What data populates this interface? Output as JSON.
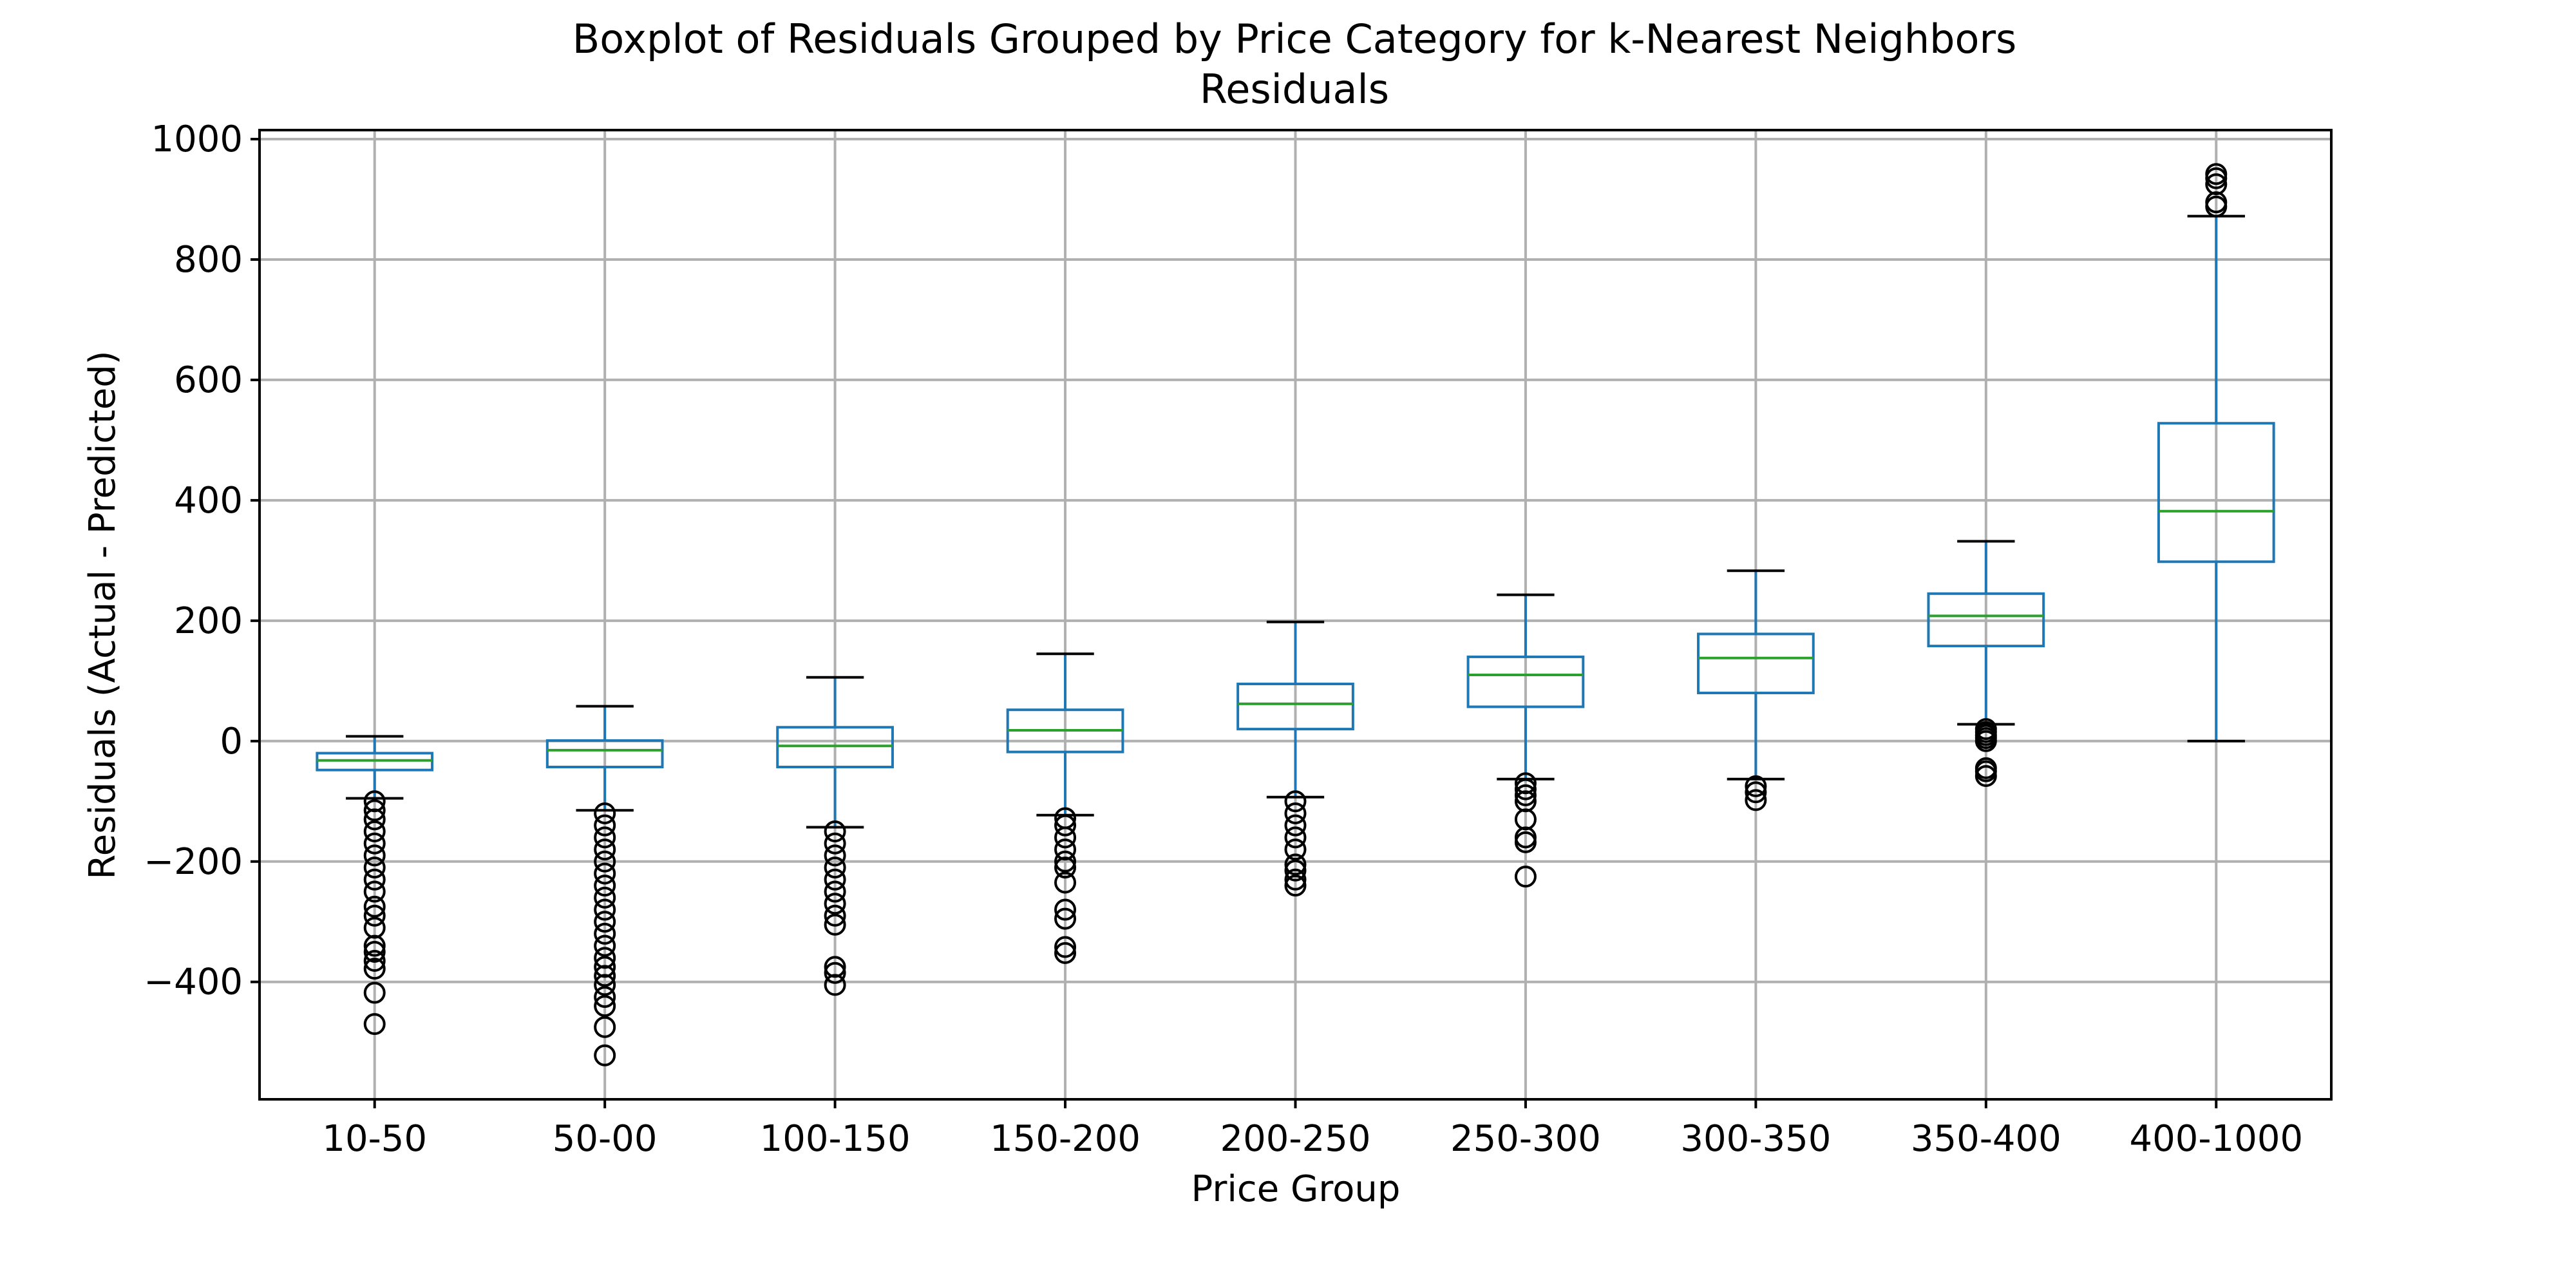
{
  "chart_data": {
    "type": "boxplot",
    "title": "Boxplot of Residuals Grouped by Price Category for k-Nearest Neighbors",
    "subtitle": "Residuals",
    "xlabel": "Price Group",
    "ylabel": "Residuals (Actual - Predicted)",
    "ylim": [
      -595,
      1015
    ],
    "yticks": [
      -400,
      -200,
      0,
      200,
      400,
      600,
      800,
      1000
    ],
    "grid": true,
    "colors": {
      "box": "#1f77b4",
      "median": "#2ca02c",
      "cap": "#000000",
      "outlier": "#000000",
      "grid": "#b0b0b0"
    },
    "categories": [
      "10-50",
      "50-00",
      "100-150",
      "150-200",
      "200-250",
      "250-300",
      "300-350",
      "350-400",
      "400-1000"
    ],
    "boxes": [
      {
        "category": "10-50",
        "whisker_low": -95,
        "q1": -48,
        "median": -32,
        "q3": -20,
        "whisker_high": 8,
        "outliers": [
          -470,
          -418,
          -378,
          -365,
          -350,
          -340,
          -310,
          -290,
          -275,
          -250,
          -230,
          -210,
          -190,
          -170,
          -150,
          -130,
          -115,
          -100
        ]
      },
      {
        "category": "50-00",
        "whisker_low": -115,
        "q1": -43,
        "median": -15,
        "q3": 1,
        "whisker_high": 58,
        "outliers": [
          -522,
          -475,
          -440,
          -425,
          -405,
          -390,
          -375,
          -360,
          -340,
          -320,
          -300,
          -280,
          -260,
          -240,
          -220,
          -200,
          -180,
          -160,
          -140,
          -120
        ]
      },
      {
        "category": "100-150",
        "whisker_low": -143,
        "q1": -43,
        "median": -8,
        "q3": 23,
        "whisker_high": 106,
        "outliers": [
          -405,
          -385,
          -375,
          -305,
          -290,
          -270,
          -250,
          -230,
          -210,
          -190,
          -170,
          -150
        ]
      },
      {
        "category": "150-200",
        "whisker_low": -123,
        "q1": -18,
        "median": 18,
        "q3": 52,
        "whisker_high": 145,
        "outliers": [
          -352,
          -342,
          -295,
          -280,
          -235,
          -210,
          -200,
          -180,
          -160,
          -140,
          -128
        ]
      },
      {
        "category": "200-250",
        "whisker_low": -93,
        "q1": 20,
        "median": 62,
        "q3": 95,
        "whisker_high": 198,
        "outliers": [
          -240,
          -230,
          -215,
          -205,
          -180,
          -160,
          -140,
          -120,
          -100
        ]
      },
      {
        "category": "250-300",
        "whisker_low": -63,
        "q1": 57,
        "median": 110,
        "q3": 140,
        "whisker_high": 243,
        "outliers": [
          -225,
          -168,
          -160,
          -130,
          -100,
          -90,
          -80,
          -70
        ]
      },
      {
        "category": "300-350",
        "whisker_low": -63,
        "q1": 80,
        "median": 138,
        "q3": 178,
        "whisker_high": 283,
        "outliers": [
          -98,
          -85,
          -75
        ]
      },
      {
        "category": "350-400",
        "whisker_low": 28,
        "q1": 158,
        "median": 208,
        "q3": 245,
        "whisker_high": 332,
        "outliers": [
          -58,
          -50,
          -45,
          0,
          5,
          10,
          15,
          20
        ]
      },
      {
        "category": "400-1000",
        "whisker_low": 0,
        "q1": 298,
        "median": 382,
        "q3": 528,
        "whisker_high": 872,
        "outliers": [
          888,
          895,
          925,
          935,
          942
        ]
      }
    ]
  }
}
